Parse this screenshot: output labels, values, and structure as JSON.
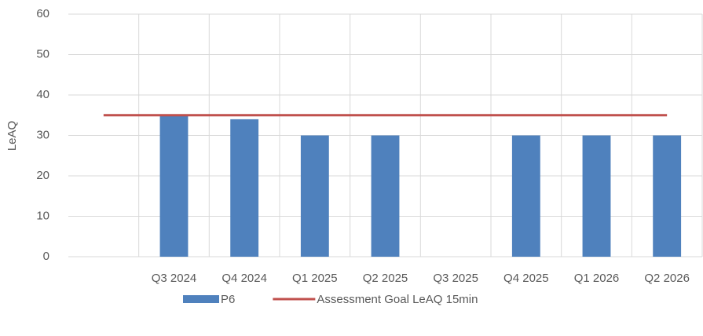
{
  "chart_data": {
    "type": "bar",
    "y_label": "LeAQ",
    "categories": [
      null,
      "Q3 2024",
      "Q4 2024",
      "Q1 2025",
      "Q2 2025",
      "Q3 2025",
      "Q4 2025",
      "Q1 2026",
      "Q2 2026"
    ],
    "series": [
      {
        "name": "P6",
        "type": "bar",
        "color": "#4f81bd",
        "values": [
          null,
          35,
          34,
          30,
          30,
          null,
          30,
          30,
          30
        ]
      },
      {
        "name": "Assessment Goal LeAQ 15min",
        "type": "line",
        "color": "#c0504d",
        "values": [
          35,
          35,
          35,
          35,
          35,
          35,
          35,
          35,
          35
        ]
      }
    ],
    "ylim": [
      0,
      60
    ],
    "yticks": [
      0,
      10,
      20,
      30,
      40,
      50,
      60
    ],
    "grid": true,
    "legend": "bottom"
  }
}
